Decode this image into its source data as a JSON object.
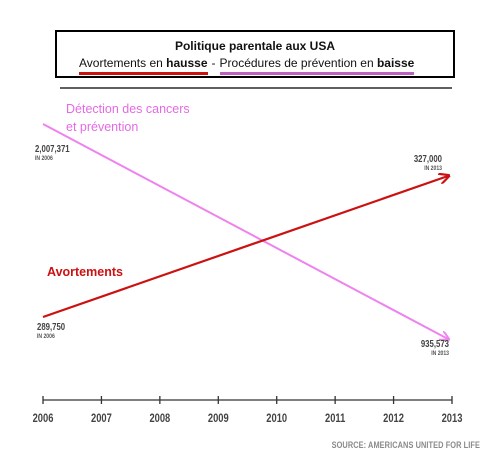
{
  "legend": {
    "title": "Politique parentale aux USA",
    "item1_prefix": "Avortements en ",
    "item1_bold": "hausse",
    "separator": " - ",
    "item2_prefix": "Procédures de prévention en ",
    "item2_bold": "baisse"
  },
  "source": "SOURCE: AMERICANS UNITED FOR LIFE",
  "chart_data": {
    "type": "line",
    "x_ticks": [
      "2006",
      "2007",
      "2008",
      "2009",
      "2010",
      "2011",
      "2012",
      "2013"
    ],
    "series": [
      {
        "name": "Détection des cancers et prévention",
        "name_lines": [
          "Détection des cancers",
          "et prévention"
        ],
        "color": "#ee82ee",
        "points": [
          {
            "x": 2006,
            "y": 2007371,
            "value_label": "2,007,371",
            "year_label": "IN 2006"
          },
          {
            "x": 2013,
            "y": 935573,
            "value_label": "935,573",
            "year_label": "IN 2013"
          }
        ]
      },
      {
        "name": "Avortements",
        "color": "#cc1111",
        "points": [
          {
            "x": 2006,
            "y": 289750,
            "value_label": "289,750",
            "year_label": "IN 2006"
          },
          {
            "x": 2013,
            "y": 327000,
            "value_label": "327,000",
            "year_label": "IN 2013"
          }
        ]
      }
    ]
  }
}
